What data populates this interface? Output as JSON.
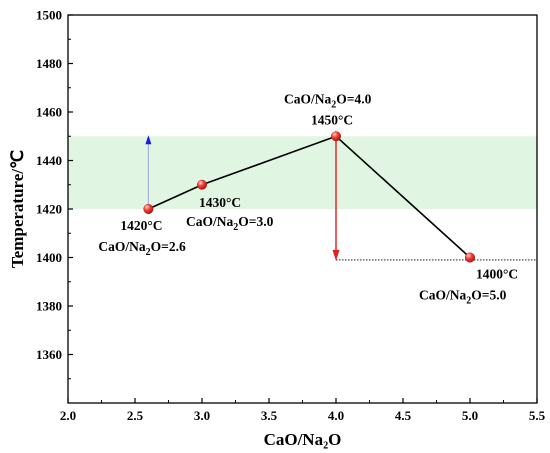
{
  "chart_data": {
    "type": "line",
    "xlabel": "CaO/Na₂O",
    "ylabel": "Temperature/℃",
    "xlim": [
      2.0,
      5.5
    ],
    "ylim": [
      1340,
      1500
    ],
    "x_ticks": [
      2.0,
      2.5,
      3.0,
      3.5,
      4.0,
      4.5,
      5.0,
      5.5
    ],
    "x_tick_labels": [
      "2.0",
      "2.5",
      "3.0",
      "3.5",
      "4.0",
      "4.5",
      "5.0",
      "5.5"
    ],
    "y_ticks": [
      1360,
      1380,
      1400,
      1420,
      1440,
      1460,
      1480,
      1500
    ],
    "y_tick_labels": [
      "1360",
      "1380",
      "1400",
      "1420",
      "1440",
      "1460",
      "1480",
      "1500"
    ],
    "grid": false,
    "legend": "none",
    "series": [
      {
        "x": [
          2.6,
          3.0,
          4.0,
          5.0
        ],
        "y": [
          1420,
          1430,
          1450,
          1400
        ]
      }
    ],
    "band": {
      "y_from": 1420,
      "y_to": 1450,
      "color": "#e0f5e2"
    },
    "annotations": [
      {
        "id": "p26",
        "temp": "1420°C",
        "ratio_prefix": "CaO/Na",
        "ratio_sub": "2",
        "ratio_suffix": "O=2.6"
      },
      {
        "id": "p30",
        "temp": "1430°C",
        "ratio_prefix": "CaO/Na",
        "ratio_sub": "2",
        "ratio_suffix": "O=3.0"
      },
      {
        "id": "p40",
        "temp": "1450°C",
        "ratio_prefix": "CaO/Na",
        "ratio_sub": "2",
        "ratio_suffix": "O=4.0"
      },
      {
        "id": "p50",
        "temp": "1400°C",
        "ratio_prefix": "CaO/Na",
        "ratio_sub": "2",
        "ratio_suffix": "O=5.0"
      }
    ],
    "colors": {
      "line": "#000000",
      "marker": "#e8302b",
      "up_arrow": "#1a1adc",
      "up_arrow_stem": "#a8b4e8",
      "down_arrow": "#e51c1c"
    }
  }
}
